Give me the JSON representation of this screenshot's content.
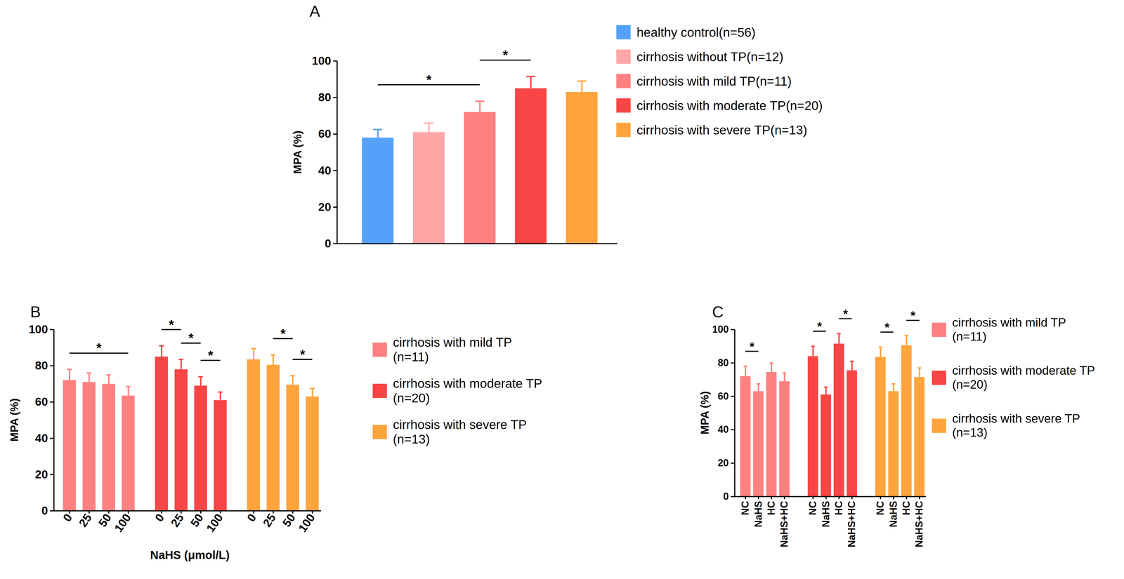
{
  "chart_data": [
    {
      "type": "bar",
      "title": "A",
      "y_label": "MPA (%)",
      "categories": [
        "healthy control(n=56)",
        "cirrhosis without TP(n=12)",
        "cirrhosis with mild TP(n=11)",
        "cirrhosis with moderate TP(n=20)",
        "cirrhosis with severe TP(n=13)"
      ],
      "values": [
        58,
        61,
        72,
        85,
        83
      ],
      "errors": [
        4.5,
        5,
        6,
        6.5,
        6
      ],
      "colors": [
        "#55A1FA",
        "#FFA6A6",
        "#FF8080",
        "#F94545",
        "#FFA43D"
      ],
      "ylim": [
        0,
        100
      ],
      "yticks": [
        0,
        20,
        40,
        60,
        80,
        100
      ],
      "tick_labels": "y",
      "legend": "right",
      "significance": [
        {
          "from": "healthy control(n=56)",
          "to": "cirrhosis with mild TP(n=11)",
          "label": "*"
        },
        {
          "from": "cirrhosis with mild TP(n=11)",
          "to": "cirrhosis with moderate TP(n=20)",
          "label": "*"
        }
      ]
    },
    {
      "type": "bar",
      "title": "B",
      "x_label": "NaHS (μmol/L)",
      "y_label": "MPA (%)",
      "categories": [
        "0",
        "25",
        "50",
        "100"
      ],
      "series": [
        {
          "name": "cirrhosis with mild TP (n=11)",
          "color": "#FF8080",
          "values": [
            72,
            71,
            70,
            63.5
          ],
          "errors": [
            6,
            5,
            5,
            5
          ]
        },
        {
          "name": "cirrhosis with moderate TP (n=20)",
          "color": "#F94545",
          "values": [
            85,
            78,
            69,
            61
          ],
          "errors": [
            6,
            5.5,
            5,
            4.5
          ]
        },
        {
          "name": "cirrhosis with severe TP (n=13)",
          "color": "#FFA43D",
          "values": [
            83.5,
            80.5,
            69.5,
            63
          ],
          "errors": [
            6,
            5.5,
            5,
            4.5
          ]
        }
      ],
      "ylim": [
        0,
        100
      ],
      "yticks": [
        0,
        20,
        40,
        60,
        80,
        100
      ],
      "legend": "right",
      "significance": [
        {
          "series": "cirrhosis with mild TP (n=11)",
          "from": "0",
          "to": "100",
          "label": "*"
        },
        {
          "series": "cirrhosis with moderate TP (n=20)",
          "from": "0",
          "to": "25",
          "label": "*"
        },
        {
          "series": "cirrhosis with moderate TP (n=20)",
          "from": "25",
          "to": "50",
          "label": "*"
        },
        {
          "series": "cirrhosis with moderate TP (n=20)",
          "from": "50",
          "to": "100",
          "label": "*"
        },
        {
          "series": "cirrhosis with severe TP (n=13)",
          "from": "25",
          "to": "50",
          "label": "*"
        },
        {
          "series": "cirrhosis with severe TP (n=13)",
          "from": "50",
          "to": "100",
          "label": "*"
        }
      ]
    },
    {
      "type": "bar",
      "title": "C",
      "y_label": "MPA (%)",
      "categories": [
        "NC",
        "NaHS",
        "HC",
        "NaHS+HC"
      ],
      "series": [
        {
          "name": "cirrhosis with mild TP (n=11)",
          "color": "#FF8080",
          "values": [
            72,
            63,
            74.5,
            69
          ],
          "errors": [
            6,
            4.5,
            5.5,
            5
          ]
        },
        {
          "name": "cirrhosis with moderate TP (n=20)",
          "color": "#F94545",
          "values": [
            84,
            61,
            91.5,
            75.5
          ],
          "errors": [
            6,
            4.5,
            6,
            5.5
          ]
        },
        {
          "name": "cirrhosis with severe TP (n=13)",
          "color": "#FFA43D",
          "values": [
            83.5,
            63,
            90.5,
            71.5
          ],
          "errors": [
            6,
            4.5,
            6,
            5.5
          ]
        }
      ],
      "ylim": [
        0,
        100
      ],
      "yticks": [
        0,
        20,
        40,
        60,
        80,
        100
      ],
      "legend": "right",
      "significance": [
        {
          "series": "cirrhosis with mild TP (n=11)",
          "from": "NC",
          "to": "NaHS",
          "label": "*"
        },
        {
          "series": "cirrhosis with moderate TP (n=20)",
          "from": "NC",
          "to": "NaHS",
          "label": "*"
        },
        {
          "series": "cirrhosis with moderate TP (n=20)",
          "from": "HC",
          "to": "NaHS+HC",
          "label": "*"
        },
        {
          "series": "cirrhosis with severe TP (n=13)",
          "from": "NC",
          "to": "NaHS",
          "label": "*"
        },
        {
          "series": "cirrhosis with severe TP (n=13)",
          "from": "HC",
          "to": "NaHS+HC",
          "label": "*"
        }
      ]
    }
  ]
}
